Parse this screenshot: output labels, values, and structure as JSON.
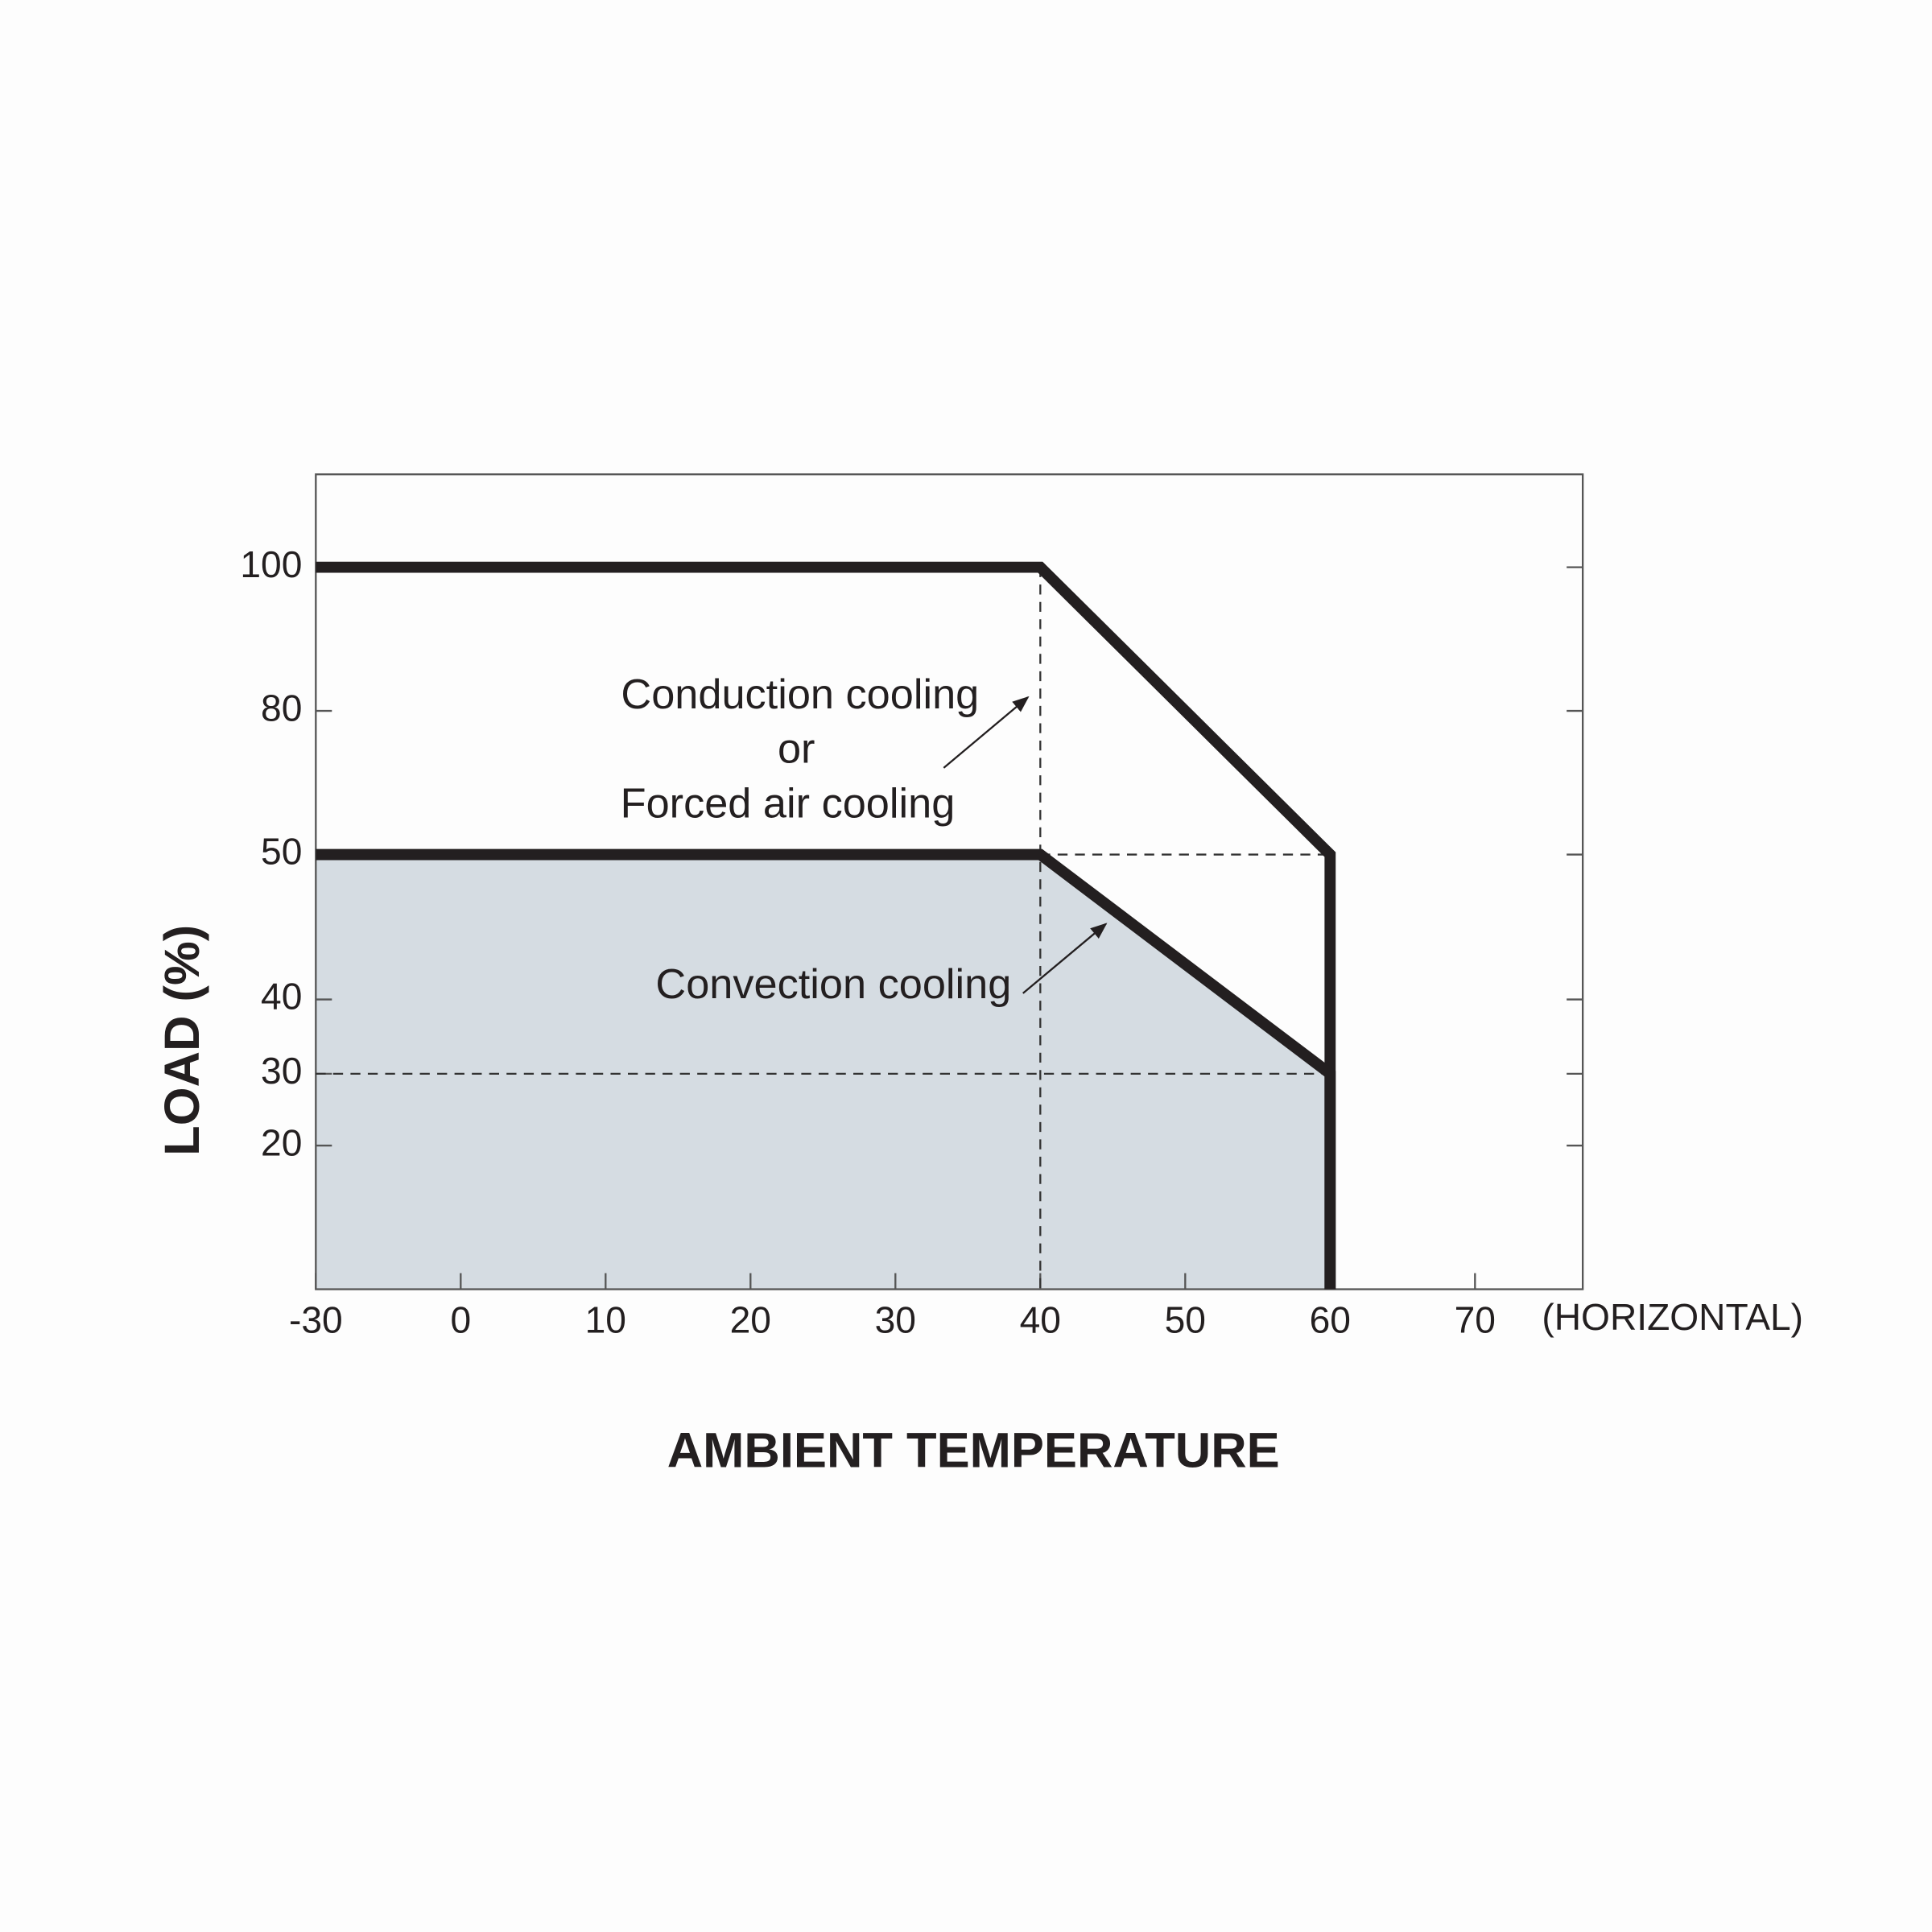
{
  "chart_data": {
    "type": "line",
    "xlabel": "AMBIENT TEMPERATURE",
    "ylabel": "LOAD (%)",
    "x_unit_note": "(HORIZONTAL)",
    "xlim": [
      -30,
      77.5
    ],
    "xticks": [
      -30,
      0,
      10,
      20,
      30,
      40,
      50,
      60,
      70
    ],
    "ylim": [
      0,
      110
    ],
    "yticks": [
      20,
      30,
      40,
      50,
      80,
      100
    ],
    "series": [
      {
        "name": "Conduction cooling or Forced air cooling",
        "color": "#231f20",
        "x": [
          -30,
          40,
          60,
          60
        ],
        "values": [
          100,
          100,
          50,
          0
        ]
      },
      {
        "name": "Convection cooling",
        "color": "#231f20",
        "fill": "#d5dce2",
        "x": [
          -30,
          40,
          60,
          60
        ],
        "values": [
          50,
          50,
          30,
          0
        ]
      }
    ],
    "annotations": [
      "Conduction cooling",
      "or",
      "Forced air cooling",
      "Convection cooling"
    ]
  }
}
